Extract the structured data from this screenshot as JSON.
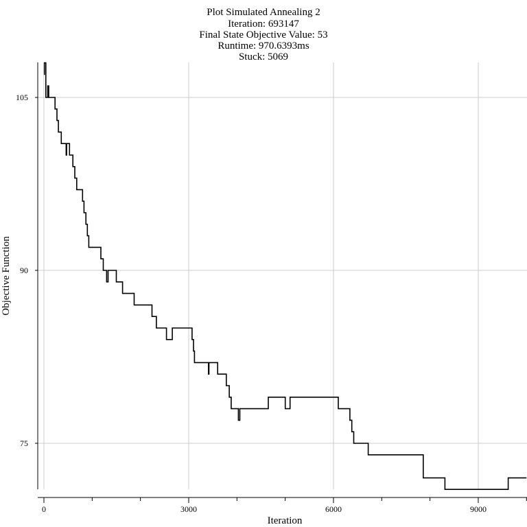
{
  "chart_data": {
    "type": "line",
    "title_lines": [
      "Plot Simulated Annealing 2",
      "Iteration: 693147",
      "Final State Objective Value: 53",
      "Runtime: 970.6393ms",
      "Stuck: 5069"
    ],
    "xlabel": "Iteration",
    "ylabel": "Objective Function",
    "xlim": [
      0,
      10000
    ],
    "ylim": [
      68,
      108
    ],
    "xticks": [
      0,
      3000,
      6000,
      9000
    ],
    "xtick_labels": [
      "0",
      "3000",
      "6000",
      "9000"
    ],
    "xminor_ticks": [
      1000,
      2000,
      4000,
      5000,
      7000,
      8000,
      10000
    ],
    "yticks": [
      75,
      90,
      105
    ],
    "ytick_labels": [
      "75",
      "90",
      "105"
    ],
    "grid": true,
    "series": [
      {
        "x": [
          0,
          10,
          10,
          40,
          40,
          80,
          80,
          100,
          100,
          130,
          130,
          170,
          170,
          230,
          230,
          270,
          270,
          300,
          300,
          360,
          360,
          450,
          450,
          460,
          460,
          470,
          470,
          530,
          530,
          600,
          600,
          640,
          640,
          680,
          680,
          730,
          730,
          800,
          800,
          830,
          830,
          850,
          850,
          870,
          870,
          900,
          900,
          930,
          930,
          970,
          970,
          1020,
          1020,
          1180,
          1180,
          1230,
          1230,
          1300,
          1300,
          1330,
          1330,
          1350,
          1350,
          1390,
          1390,
          1500,
          1500,
          1630,
          1630,
          1870,
          1870,
          2240,
          2240,
          2330,
          2330,
          2540,
          2540,
          2660,
          2660,
          2960,
          2960,
          3070,
          3070,
          3100,
          3100,
          3120,
          3120,
          3390,
          3390,
          3410,
          3410,
          3420,
          3420,
          3600,
          3600,
          3780,
          3780,
          3840,
          3840,
          3880,
          3880,
          4030,
          4030,
          4050,
          4050,
          4060,
          4060,
          4650,
          4650,
          5000,
          5000,
          5100,
          5100,
          6100,
          6100,
          6340,
          6340,
          6380,
          6380,
          6420,
          6420,
          6720,
          6720,
          7860,
          7860,
          8310,
          8310,
          9620,
          9620,
          10000
        ],
        "y": [
          107,
          107,
          108,
          108,
          105,
          105,
          106,
          106,
          105,
          105,
          105,
          105,
          105,
          105,
          104,
          104,
          103,
          103,
          102,
          102,
          101,
          101,
          101,
          101,
          100,
          100,
          101,
          101,
          100,
          100,
          99,
          99,
          98,
          98,
          97,
          97,
          97,
          97,
          96,
          96,
          95,
          95,
          95,
          95,
          94,
          94,
          93,
          93,
          92,
          92,
          92,
          92,
          92,
          92,
          91,
          91,
          90,
          90,
          89,
          89,
          90,
          90,
          90,
          90,
          90,
          90,
          89,
          89,
          88,
          88,
          87,
          87,
          86,
          86,
          85,
          85,
          84,
          84,
          85,
          85,
          85,
          85,
          84,
          84,
          83,
          83,
          82,
          82,
          82,
          82,
          81,
          81,
          82,
          82,
          81,
          81,
          80,
          80,
          79,
          79,
          78,
          78,
          77,
          77,
          77,
          77,
          78,
          78,
          79,
          79,
          78,
          78,
          79,
          79,
          78,
          78,
          77,
          77,
          76,
          76,
          75,
          75,
          74,
          74,
          72,
          72,
          71,
          71,
          72,
          72
        ]
      }
    ]
  }
}
